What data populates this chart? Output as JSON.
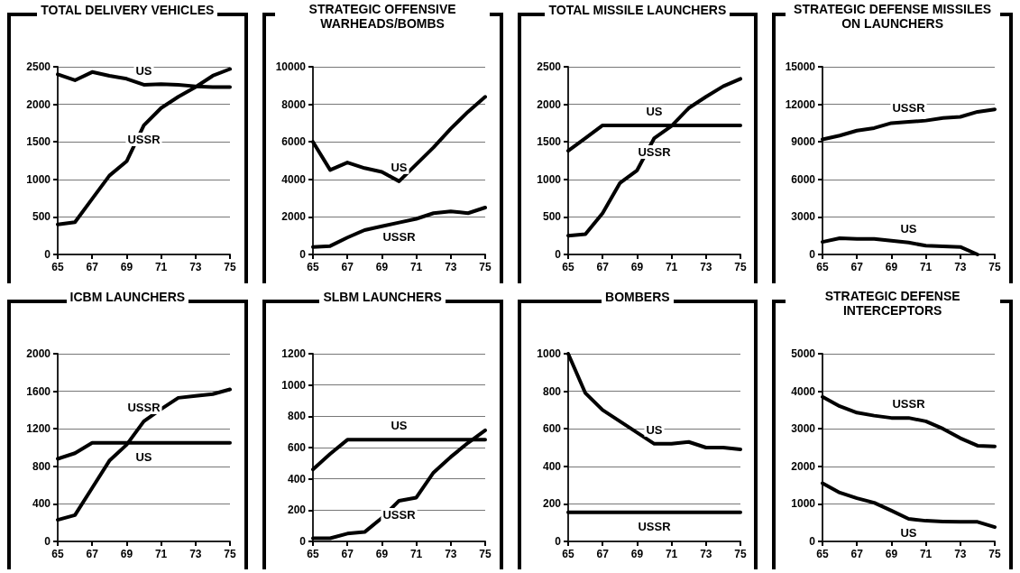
{
  "chart_data": [
    {
      "type": "line",
      "title": "TOTAL DELIVERY VEHICLES",
      "x": [
        65,
        66,
        67,
        68,
        69,
        70,
        71,
        72,
        73,
        74,
        75
      ],
      "xlim": [
        65,
        75
      ],
      "xticks": [
        65,
        67,
        69,
        71,
        73,
        75
      ],
      "ylim": [
        0,
        2500
      ],
      "yticks": [
        0,
        500,
        1000,
        1500,
        2000,
        2500
      ],
      "grid": "y",
      "marker": "none",
      "line_style": "solid",
      "legend": false,
      "series": [
        {
          "name": "US",
          "color": "#000000",
          "values": [
            2400,
            2320,
            2430,
            2380,
            2340,
            2260,
            2270,
            2260,
            2240,
            2230,
            2230
          ]
        },
        {
          "name": "USSR",
          "color": "#000000",
          "values": [
            400,
            430,
            740,
            1050,
            1240,
            1720,
            1950,
            2100,
            2230,
            2380,
            2470
          ]
        }
      ]
    },
    {
      "type": "line",
      "title": "STRATEGIC OFFENSIVE WARHEADS/BOMBS",
      "x": [
        65,
        66,
        67,
        68,
        69,
        70,
        71,
        72,
        73,
        74,
        75
      ],
      "xlim": [
        65,
        75
      ],
      "xticks": [
        65,
        67,
        69,
        71,
        73,
        75
      ],
      "ylim": [
        0,
        10000
      ],
      "yticks": [
        0,
        2000,
        4000,
        6000,
        8000,
        10000
      ],
      "grid": "y",
      "marker": "none",
      "line_style": "solid",
      "legend": false,
      "series": [
        {
          "name": "US",
          "color": "#000000",
          "values": [
            6000,
            4500,
            4900,
            4600,
            4400,
            3900,
            4800,
            5700,
            6700,
            7600,
            8400
          ]
        },
        {
          "name": "USSR",
          "color": "#000000",
          "values": [
            400,
            450,
            900,
            1300,
            1500,
            1700,
            1900,
            2200,
            2300,
            2200,
            2500
          ]
        }
      ]
    },
    {
      "type": "line",
      "title": "TOTAL MISSILE LAUNCHERS",
      "x": [
        65,
        66,
        67,
        68,
        69,
        70,
        71,
        72,
        73,
        74,
        75
      ],
      "xlim": [
        65,
        75
      ],
      "xticks": [
        65,
        67,
        69,
        71,
        73,
        75
      ],
      "ylim": [
        0,
        2500
      ],
      "yticks": [
        0,
        500,
        1000,
        1500,
        2000,
        2500
      ],
      "grid": "y",
      "marker": "none",
      "line_style": "solid",
      "legend": false,
      "series": [
        {
          "name": "US",
          "color": "#000000",
          "values": [
            1380,
            1550,
            1720,
            1720,
            1720,
            1720,
            1720,
            1720,
            1720,
            1720,
            1720
          ]
        },
        {
          "name": "USSR",
          "color": "#000000",
          "values": [
            250,
            270,
            550,
            950,
            1120,
            1550,
            1710,
            1950,
            2100,
            2240,
            2340
          ]
        }
      ]
    },
    {
      "type": "line",
      "title": "STRATEGIC DEFENSE MISSILES ON LAUNCHERS",
      "x": [
        65,
        66,
        67,
        68,
        69,
        70,
        71,
        72,
        73,
        74,
        75
      ],
      "xlim": [
        65,
        75
      ],
      "xticks": [
        65,
        67,
        69,
        71,
        73,
        75
      ],
      "ylim": [
        0,
        15000
      ],
      "yticks": [
        0,
        3000,
        6000,
        9000,
        12000,
        15000
      ],
      "grid": "y",
      "marker": "none",
      "line_style": "solid",
      "legend": false,
      "series": [
        {
          "name": "USSR",
          "color": "#000000",
          "values": [
            9200,
            9500,
            9900,
            10100,
            10500,
            10600,
            10700,
            10900,
            11000,
            11400,
            11600
          ]
        },
        {
          "name": "US",
          "color": "#000000",
          "values": [
            1000,
            1300,
            1250,
            1250,
            1100,
            950,
            700,
            650,
            600,
            0,
            null
          ]
        }
      ]
    },
    {
      "type": "line",
      "title": "ICBM LAUNCHERS",
      "x": [
        65,
        66,
        67,
        68,
        69,
        70,
        71,
        72,
        73,
        74,
        75
      ],
      "xlim": [
        65,
        75
      ],
      "xticks": [
        65,
        67,
        69,
        71,
        73,
        75
      ],
      "ylim": [
        0,
        2000
      ],
      "yticks": [
        0,
        400,
        800,
        1200,
        1600,
        2000
      ],
      "grid": "y",
      "marker": "none",
      "line_style": "solid",
      "legend": false,
      "series": [
        {
          "name": "US",
          "color": "#000000",
          "values": [
            880,
            940,
            1050,
            1050,
            1050,
            1050,
            1050,
            1050,
            1050,
            1050,
            1050
          ]
        },
        {
          "name": "USSR",
          "color": "#000000",
          "values": [
            230,
            280,
            570,
            860,
            1030,
            1280,
            1410,
            1530,
            1550,
            1570,
            1620
          ]
        }
      ]
    },
    {
      "type": "line",
      "title": "SLBM LAUNCHERS",
      "x": [
        65,
        66,
        67,
        68,
        69,
        70,
        71,
        72,
        73,
        74,
        75
      ],
      "xlim": [
        65,
        75
      ],
      "xticks": [
        65,
        67,
        69,
        71,
        73,
        75
      ],
      "ylim": [
        0,
        1200
      ],
      "yticks": [
        0,
        200,
        400,
        600,
        800,
        1000,
        1200
      ],
      "grid": "y",
      "marker": "none",
      "line_style": "solid",
      "legend": false,
      "series": [
        {
          "name": "US",
          "color": "#000000",
          "values": [
            460,
            560,
            650,
            650,
            650,
            650,
            650,
            650,
            650,
            650,
            650
          ]
        },
        {
          "name": "USSR",
          "color": "#000000",
          "values": [
            20,
            20,
            50,
            60,
            150,
            260,
            280,
            440,
            540,
            630,
            710
          ]
        }
      ]
    },
    {
      "type": "line",
      "title": "BOMBERS",
      "x": [
        65,
        66,
        67,
        68,
        69,
        70,
        71,
        72,
        73,
        74,
        75
      ],
      "xlim": [
        65,
        75
      ],
      "xticks": [
        65,
        67,
        69,
        71,
        73,
        75
      ],
      "ylim": [
        0,
        1000
      ],
      "yticks": [
        0,
        200,
        400,
        600,
        800,
        1000
      ],
      "grid": "y",
      "marker": "none",
      "line_style": "solid",
      "legend": false,
      "series": [
        {
          "name": "US",
          "color": "#000000",
          "values": [
            1000,
            790,
            700,
            640,
            580,
            520,
            520,
            530,
            500,
            500,
            490
          ]
        },
        {
          "name": "USSR",
          "color": "#000000",
          "values": [
            155,
            155,
            155,
            155,
            155,
            155,
            155,
            155,
            155,
            155,
            155
          ]
        }
      ]
    },
    {
      "type": "line",
      "title": "STRATEGIC DEFENSE INTERCEPTORS",
      "x": [
        65,
        66,
        67,
        68,
        69,
        70,
        71,
        72,
        73,
        74,
        75
      ],
      "xlim": [
        65,
        75
      ],
      "xticks": [
        65,
        67,
        69,
        71,
        73,
        75
      ],
      "ylim": [
        0,
        5000
      ],
      "yticks": [
        0,
        1000,
        2000,
        3000,
        4000,
        5000
      ],
      "grid": "y",
      "marker": "none",
      "line_style": "solid",
      "legend": false,
      "series": [
        {
          "name": "USSR",
          "color": "#000000",
          "values": [
            3850,
            3600,
            3430,
            3350,
            3290,
            3290,
            3200,
            3000,
            2750,
            2550,
            2530
          ]
        },
        {
          "name": "US",
          "color": "#000000",
          "values": [
            1550,
            1300,
            1150,
            1030,
            820,
            600,
            550,
            530,
            520,
            520,
            380
          ]
        }
      ]
    }
  ]
}
